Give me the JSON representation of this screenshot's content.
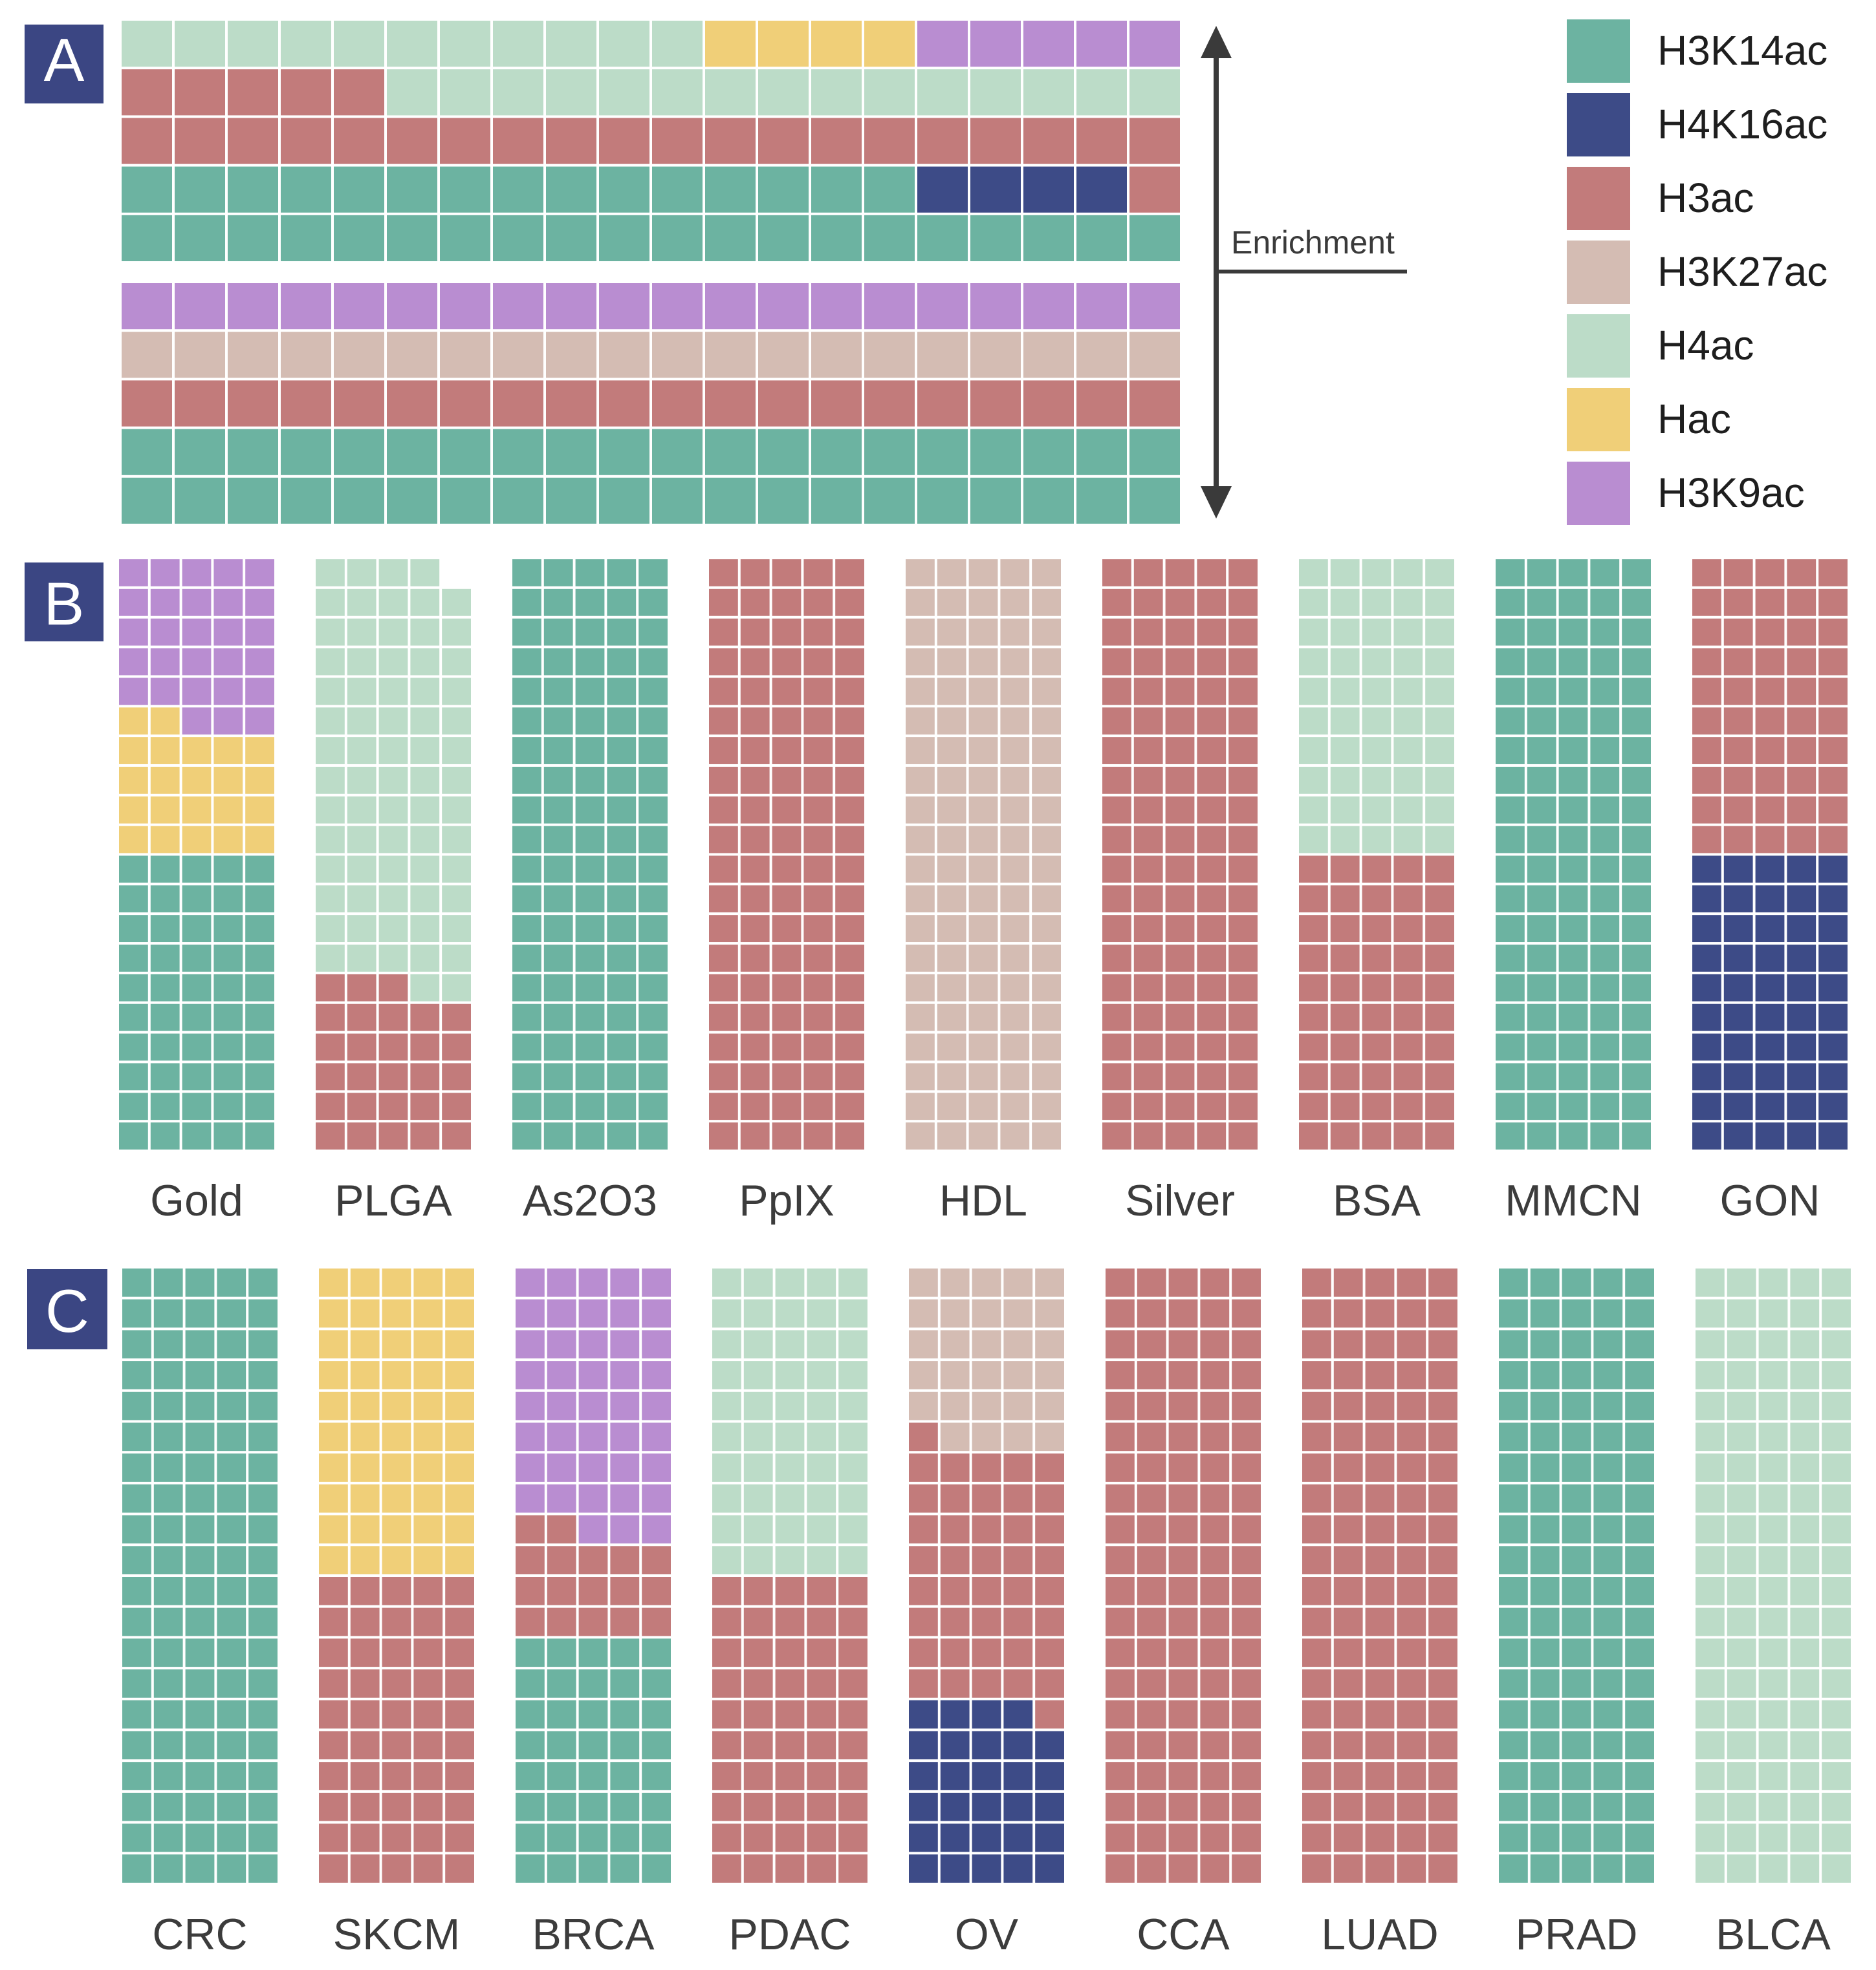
{
  "chart_data": [
    {
      "type": "waffle",
      "panel_label": "A",
      "description_axis": "Enrichment",
      "grid": {
        "columns": 20,
        "rows": 5
      },
      "rows": [
        {
          "index": 1,
          "cells": [
            {
              "mark": "H3K14ac",
              "count": 35
            },
            {
              "mark": "H4K16ac",
              "count": 4
            },
            {
              "mark": "H3ac",
              "count": 26
            },
            {
              "mark": "H4ac",
              "count": 26
            },
            {
              "mark": "Hac",
              "count": 4
            },
            {
              "mark": "H3K9ac",
              "count": 5
            }
          ]
        },
        {
          "index": 2,
          "grid": {
            "columns": 20,
            "rows": 5
          },
          "cells": [
            {
              "mark": "H3K14ac",
              "count": 40
            },
            {
              "mark": "H3ac",
              "count": 20
            },
            {
              "mark": "H3K27ac",
              "count": 20
            },
            {
              "mark": "H3K9ac",
              "count": 20
            }
          ]
        }
      ]
    },
    {
      "type": "waffle",
      "panel_label": "B",
      "grid": {
        "columns": 5,
        "rows": 20
      },
      "categories": [
        "Gold",
        "PLGA",
        "As2O3",
        "PpIX",
        "HDL",
        "Silver",
        "BSA",
        "MMCN",
        "GON"
      ],
      "columns": [
        {
          "label": "Gold",
          "cells": [
            {
              "mark": "H3K14ac",
              "count": 50
            },
            {
              "mark": "Hac",
              "count": 22
            },
            {
              "mark": "H3K9ac",
              "count": 28
            }
          ]
        },
        {
          "label": "PLGA",
          "cells": [
            {
              "mark": "H3ac",
              "count": 28
            },
            {
              "mark": "H4ac",
              "count": 71
            }
          ]
        },
        {
          "label": "As2O3",
          "cells": [
            {
              "mark": "H3K14ac",
              "count": 100
            }
          ]
        },
        {
          "label": "PpIX",
          "cells": [
            {
              "mark": "H3ac",
              "count": 100
            }
          ]
        },
        {
          "label": "HDL",
          "cells": [
            {
              "mark": "H3K27ac",
              "count": 100
            }
          ]
        },
        {
          "label": "Silver",
          "cells": [
            {
              "mark": "H3ac",
              "count": 100
            }
          ]
        },
        {
          "label": "BSA",
          "cells": [
            {
              "mark": "H3ac",
              "count": 50
            },
            {
              "mark": "H4ac",
              "count": 50
            }
          ]
        },
        {
          "label": "MMCN",
          "cells": [
            {
              "mark": "H3K14ac",
              "count": 100
            }
          ]
        },
        {
          "label": "GON",
          "cells": [
            {
              "mark": "H4K16ac",
              "count": 50
            },
            {
              "mark": "H3ac",
              "count": 50
            }
          ]
        }
      ]
    },
    {
      "type": "waffle",
      "panel_label": "C",
      "grid": {
        "columns": 5,
        "rows": 20
      },
      "categories": [
        "CRC",
        "SKCM",
        "BRCA",
        "PDAC",
        "OV",
        "CCA",
        "LUAD",
        "PRAD",
        "BLCA"
      ],
      "columns": [
        {
          "label": "CRC",
          "cells": [
            {
              "mark": "H3K14ac",
              "count": 100
            }
          ]
        },
        {
          "label": "SKCM",
          "cells": [
            {
              "mark": "H3ac",
              "count": 50
            },
            {
              "mark": "Hac",
              "count": 50
            }
          ]
        },
        {
          "label": "BRCA",
          "cells": [
            {
              "mark": "H3K14ac",
              "count": 40
            },
            {
              "mark": "H3ac",
              "count": 17
            },
            {
              "mark": "H3K9ac",
              "count": 43
            }
          ]
        },
        {
          "label": "PDAC",
          "cells": [
            {
              "mark": "H3ac",
              "count": 50
            },
            {
              "mark": "H4ac",
              "count": 50
            }
          ]
        },
        {
          "label": "OV",
          "cells": [
            {
              "mark": "H4K16ac",
              "count": 29
            },
            {
              "mark": "H3ac",
              "count": 42
            },
            {
              "mark": "H3K27ac",
              "count": 29
            }
          ]
        },
        {
          "label": "CCA",
          "cells": [
            {
              "mark": "H3ac",
              "count": 100
            }
          ]
        },
        {
          "label": "LUAD",
          "cells": [
            {
              "mark": "H3ac",
              "count": 100
            }
          ]
        },
        {
          "label": "PRAD",
          "cells": [
            {
              "mark": "H3K14ac",
              "count": 100
            }
          ]
        },
        {
          "label": "BLCA",
          "cells": [
            {
              "mark": "H4ac",
              "count": 100
            }
          ]
        }
      ]
    }
  ],
  "legend": {
    "placement": "top-right",
    "items": [
      {
        "key": "H3K14ac",
        "label": "H3K14ac",
        "color": "#6cb3a1"
      },
      {
        "key": "H4K16ac",
        "label": "H4K16ac",
        "color": "#3d4b87"
      },
      {
        "key": "H3ac",
        "label": "H3ac",
        "color": "#c27b7b"
      },
      {
        "key": "H3K27ac",
        "label": "H3K27ac",
        "color": "#d4bcb3"
      },
      {
        "key": "H4ac",
        "label": "H4ac",
        "color": "#bcdcc8"
      },
      {
        "key": "Hac",
        "label": "Hac",
        "color": "#f0cf78"
      },
      {
        "key": "H3K9ac",
        "label": "H3K9ac",
        "color": "#b98dd1"
      }
    ]
  },
  "colors": {
    "panel_badge": "#3b4683",
    "panel_badge_text": "#ffffff",
    "arrow": "#3a3a3a",
    "label_text": "#3c3c3c",
    "cell_border": "#ffffff"
  }
}
